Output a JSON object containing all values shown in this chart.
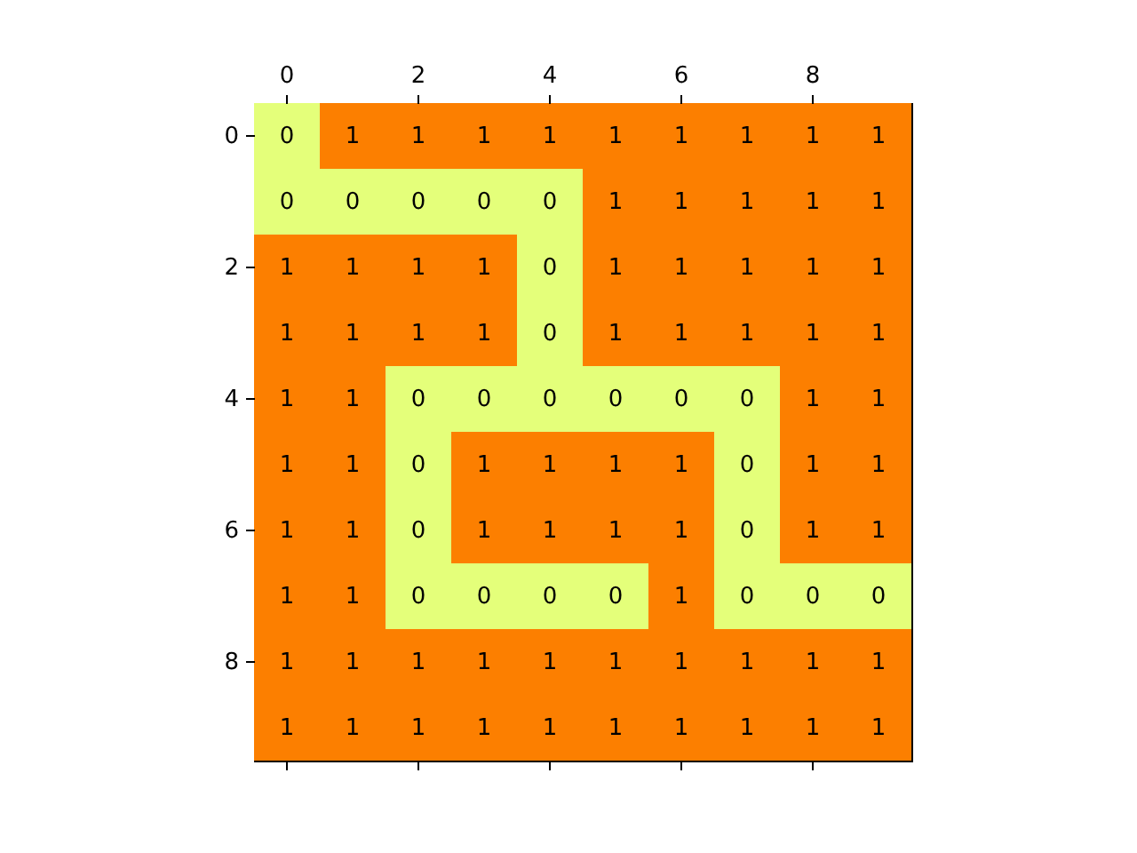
{
  "chart_data": {
    "type": "heatmap",
    "categories": [
      "0",
      null,
      "2",
      null,
      "4",
      null,
      "6",
      null,
      "8",
      null
    ],
    "y_categories": [
      "0",
      null,
      "2",
      null,
      "4",
      null,
      "6",
      null,
      "8",
      null
    ],
    "cells": [
      [
        0,
        1,
        1,
        1,
        1,
        1,
        1,
        1,
        1,
        1
      ],
      [
        0,
        0,
        0,
        0,
        0,
        1,
        1,
        1,
        1,
        1
      ],
      [
        1,
        1,
        1,
        1,
        0,
        1,
        1,
        1,
        1,
        1
      ],
      [
        1,
        1,
        1,
        1,
        0,
        1,
        1,
        1,
        1,
        1
      ],
      [
        1,
        1,
        0,
        0,
        0,
        0,
        0,
        0,
        1,
        1
      ],
      [
        1,
        1,
        0,
        1,
        1,
        1,
        1,
        0,
        1,
        1
      ],
      [
        1,
        1,
        0,
        1,
        1,
        1,
        1,
        0,
        1,
        1
      ],
      [
        1,
        1,
        0,
        0,
        0,
        0,
        1,
        0,
        0,
        0
      ],
      [
        1,
        1,
        1,
        1,
        1,
        1,
        1,
        1,
        1,
        1
      ],
      [
        1,
        1,
        1,
        1,
        1,
        1,
        1,
        1,
        1,
        1
      ]
    ],
    "colors": [
      "#e4ff7a",
      "#fc7f00"
    ],
    "data_labels": true
  }
}
